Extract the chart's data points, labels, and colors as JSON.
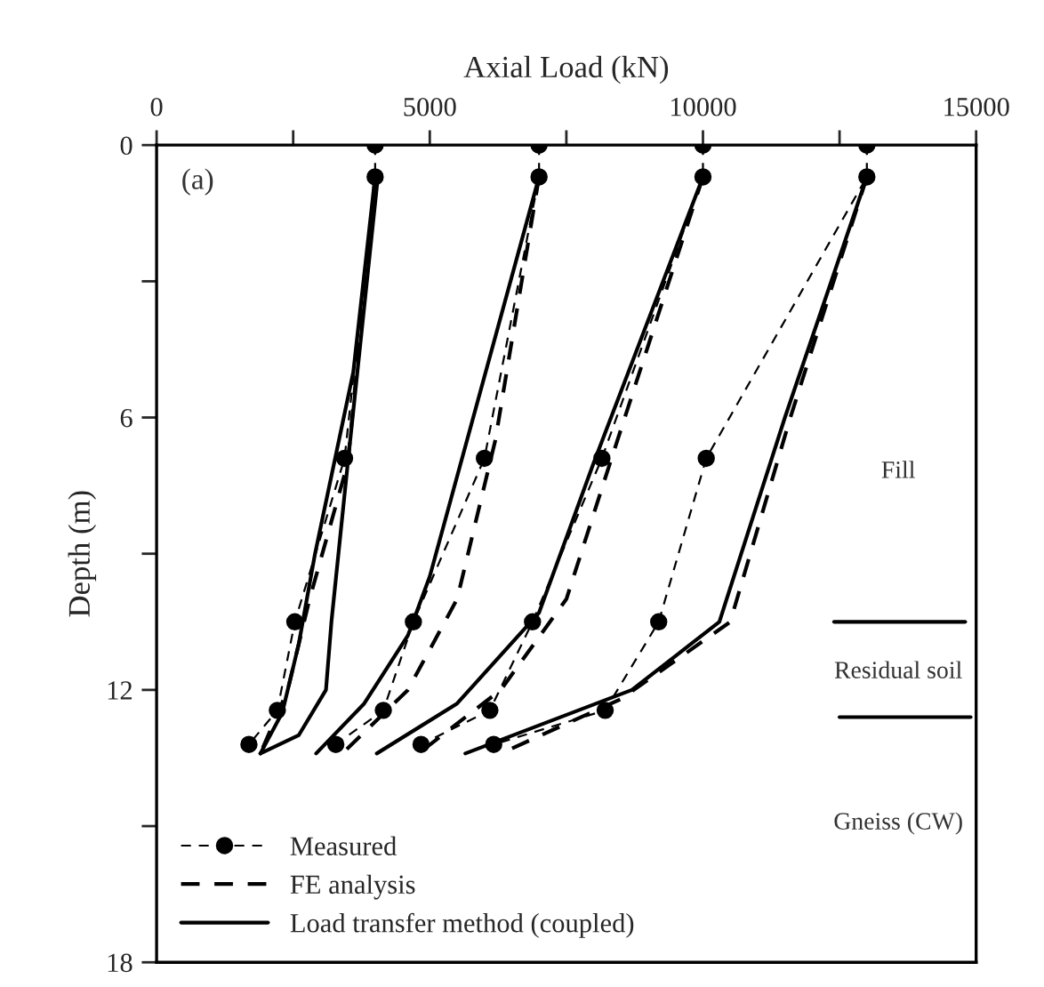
{
  "chart_data": {
    "type": "line",
    "xlabel": "Axial Load (kN)",
    "ylabel": "Depth (m)",
    "xlim": [
      0,
      15000
    ],
    "xticks": [
      0,
      {
        "value": 2500,
        "label": null
      },
      5000,
      {
        "value": 7500,
        "label": null
      },
      10000,
      {
        "value": 12500,
        "label": null
      },
      15000
    ],
    "ylim": [
      18,
      0
    ],
    "yticks": [
      0,
      {
        "value": 3,
        "label": null
      },
      6,
      {
        "value": 9,
        "label": null
      },
      12,
      {
        "value": 15,
        "label": null
      },
      18
    ],
    "grid": false,
    "legend": "bottom left",
    "annotations": [
      "(a)",
      "Fill",
      "Residual soil",
      "Gneiss (CW)"
    ],
    "series": [
      {
        "name": "Measured",
        "color": "#000000",
        "marker": "circle",
        "line_style": "dashed",
        "x": [
          4000,
          4000,
          3440,
          2530,
          2210,
          1690
        ],
        "values": [
          0,
          0.7,
          6.9,
          10.5,
          12.45,
          13.2
        ]
      },
      {
        "color": "#000000",
        "marker": "circle",
        "line_style": "dashed",
        "x": [
          7000,
          7000,
          6000,
          4700,
          4150,
          3280
        ],
        "values": [
          0,
          0.7,
          6.9,
          10.5,
          12.45,
          13.2
        ]
      },
      {
        "color": "#000000",
        "marker": "circle",
        "line_style": "dashed",
        "x": [
          10000,
          10000,
          8150,
          6880,
          6100,
          4840
        ],
        "values": [
          0,
          0.7,
          6.9,
          10.5,
          12.45,
          13.2
        ]
      },
      {
        "color": "#000000",
        "marker": "circle",
        "line_style": "dashed",
        "x": [
          13000,
          13000,
          10060,
          9190,
          8210,
          6170
        ],
        "values": [
          0,
          0.7,
          6.9,
          10.5,
          12.45,
          13.2
        ]
      },
      {
        "name": "FE analysis",
        "color": "#000000",
        "marker": "none",
        "line_style": "dashed",
        "x": [
          4000,
          3500,
          2800,
          2400,
          1900
        ],
        "values": [
          0.7,
          7,
          10,
          12,
          13.4
        ]
      },
      {
        "color": "#000000",
        "marker": "none",
        "line_style": "dashed",
        "x": [
          7000,
          6200,
          5500,
          4600,
          3400
        ],
        "values": [
          0.7,
          6.5,
          10,
          12,
          13.4
        ]
      },
      {
        "color": "#000000",
        "marker": "none",
        "line_style": "dashed",
        "x": [
          10000,
          8300,
          7500,
          6300,
          4900
        ],
        "values": [
          0.7,
          7,
          10,
          12,
          13.3
        ]
      },
      {
        "color": "#000000",
        "marker": "none",
        "line_style": "dashed",
        "x": [
          13000,
          11600,
          10500,
          8500,
          6300
        ],
        "values": [
          0.7,
          6,
          10.5,
          12.2,
          13.4
        ]
      },
      {
        "name": "Load transfer method (coupled)",
        "color": "#000000",
        "marker": "none",
        "line_style": "solid",
        "x": [
          4000,
          3600,
          2900,
          2600,
          2300,
          1900
        ],
        "values": [
          0.7,
          5,
          9,
          11,
          12.5,
          13.4
        ]
      },
      {
        "color": "#000000",
        "marker": "none",
        "line_style": "solid",
        "x": [
          7000,
          5000,
          4600,
          3800,
          2920
        ],
        "values": [
          0.7,
          9.5,
          10.8,
          12.3,
          13.4
        ]
      },
      {
        "color": "#000000",
        "marker": "none",
        "line_style": "solid",
        "x": [
          10000,
          8000,
          7000,
          5500,
          4030
        ],
        "values": [
          0.7,
          7,
          10.3,
          12.3,
          13.4
        ]
      },
      {
        "color": "#000000",
        "marker": "none",
        "line_style": "solid",
        "x": [
          13000,
          11500,
          10300,
          8700,
          5650
        ],
        "values": [
          0.7,
          6,
          10.5,
          12,
          13.4
        ]
      },
      {
        "color": "#000000",
        "marker": "none",
        "line_style": "solid",
        "x": [
          4050,
          3500,
          3200,
          3100,
          2600,
          1900
        ],
        "values": [
          0.7,
          7,
          10.5,
          12,
          13,
          13.4
        ]
      },
      {
        "color": "#000000",
        "marker": "none",
        "line_style": "solid",
        "x": [
          12400,
          14800
        ],
        "values": [
          10.5,
          10.5
        ]
      },
      {
        "color": "#000000",
        "marker": "none",
        "line_style": "solid",
        "x": [
          12500,
          14900
        ],
        "values": [
          12.6,
          12.6
        ]
      }
    ]
  }
}
